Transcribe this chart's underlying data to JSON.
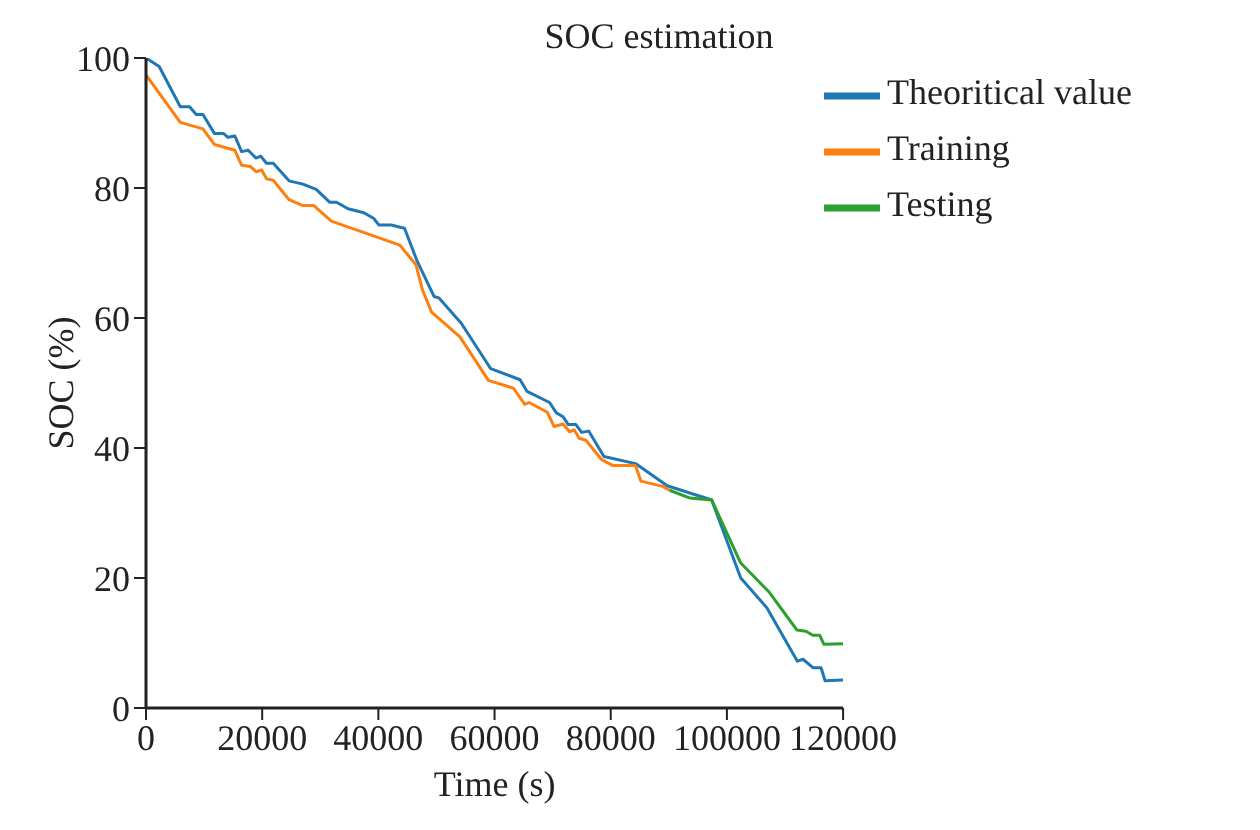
{
  "chart_data": {
    "type": "line",
    "title": "SOC estimation",
    "xlabel": "Time (s)",
    "ylabel": "SOC (%)",
    "xlim": [
      0,
      120000
    ],
    "xticks": [
      0,
      20000,
      40000,
      60000,
      80000,
      100000,
      120000
    ],
    "ylim": [
      0,
      100
    ],
    "yticks": [
      0,
      20,
      40,
      60,
      80,
      100
    ],
    "grid": false,
    "legend": "top right",
    "marker": "none",
    "line_style": "solid",
    "series": [
      {
        "name": "Theoritical value",
        "color": "#1f77b4",
        "x": [
          0,
          2270,
          5900,
          7500,
          8650,
          9800,
          11770,
          13330,
          14100,
          15300,
          16450,
          17600,
          18950,
          19750,
          20740,
          21900,
          24630,
          27000,
          29300,
          31640,
          32800,
          34780,
          37500,
          39230,
          40100,
          42200,
          44500,
          46700,
          49600,
          50400,
          54270,
          59340,
          64400,
          65600,
          69470,
          70640,
          71800,
          72700,
          74000,
          75000,
          76200,
          78830,
          84260,
          89730,
          97380,
          102380,
          106900,
          112130,
          113100,
          114800,
          116200,
          116900,
          120000
        ],
        "values": [
          100,
          98.7,
          92.5,
          92.5,
          91.3,
          91.3,
          88.4,
          88.4,
          87.8,
          88,
          85.6,
          85.8,
          84.6,
          84.9,
          83.8,
          83.8,
          81.1,
          80.6,
          79.8,
          77.8,
          77.8,
          76.8,
          76.2,
          75.3,
          74.3,
          74.3,
          73.8,
          68.7,
          63.3,
          63.1,
          59.2,
          52.2,
          50.5,
          48.7,
          47,
          45.4,
          44.8,
          43.6,
          43.6,
          42.4,
          42.6,
          38.7,
          37.6,
          34.2,
          32,
          20,
          15.4,
          7.2,
          7.5,
          6.2,
          6.2,
          4.2,
          4.3
        ]
      },
      {
        "name": "Training",
        "color": "#ff7f0e",
        "x": [
          0,
          5900,
          9800,
          11770,
          15300,
          16450,
          18000,
          18950,
          19900,
          20740,
          21900,
          24630,
          27000,
          28900,
          31900,
          43700,
          46470,
          47600,
          49160,
          54040,
          58950,
          63240,
          65200,
          65960,
          69080,
          70250,
          71800,
          72930,
          73700,
          74560,
          75730,
          78440,
          80400,
          84260,
          85200,
          88960,
          90130
        ],
        "values": [
          97.4,
          90.1,
          89.1,
          86.7,
          85.8,
          83.5,
          83.3,
          82.5,
          82.8,
          81.4,
          81.2,
          78.2,
          77.3,
          77.3,
          74.9,
          71.2,
          68.2,
          64.3,
          60.9,
          57.1,
          50.4,
          49.2,
          46.7,
          47,
          45.5,
          43.3,
          43.7,
          42.5,
          42.8,
          41.5,
          41.2,
          38.2,
          37.3,
          37.3,
          34.9,
          34.1,
          33.5
        ]
      },
      {
        "name": "Testing",
        "color": "#2ca02c",
        "x": [
          90130,
          93640,
          97380,
          102380,
          107300,
          112050,
          113600,
          114800,
          115970,
          116700,
          120000
        ],
        "values": [
          33.5,
          32.3,
          32,
          22.3,
          17.8,
          12,
          11.8,
          11.2,
          11.2,
          9.8,
          9.9
        ]
      }
    ]
  }
}
